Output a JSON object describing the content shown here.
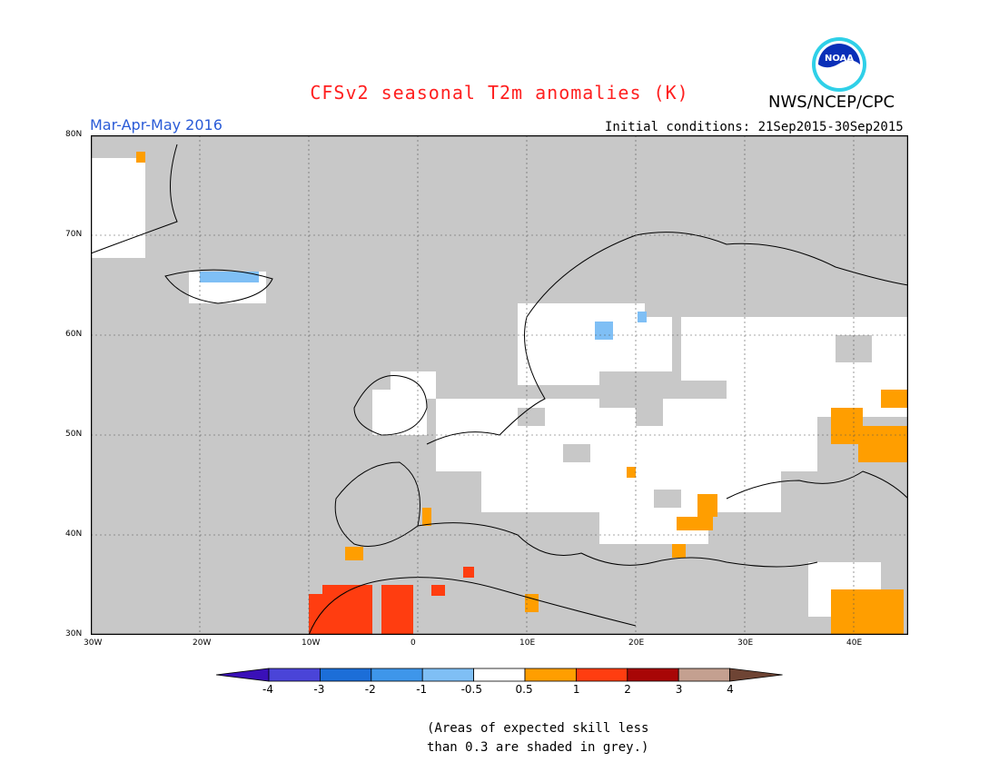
{
  "title": "CFSv2 seasonal T2m anomalies (K)",
  "agency": "NWS/NCEP/CPC",
  "logo": {
    "text": "NOAA",
    "colors": {
      "ring": "#2fd0e8",
      "core": "#0a2fb8"
    }
  },
  "period": "Mar-Apr-May 2016",
  "initial_conditions": "Initial conditions: 21Sep2015-30Sep2015",
  "map": {
    "lon_range": [
      -30,
      45
    ],
    "lat_range": [
      30,
      80
    ],
    "lat_ticks": [
      "80N",
      "70N",
      "60N",
      "50N",
      "40N",
      "30N"
    ],
    "lon_ticks": [
      "30W",
      "20W",
      "10W",
      "0",
      "10E",
      "20E",
      "30E",
      "40E"
    ],
    "colors": {
      "background": "#c8c8c8",
      "no_anomaly": "#ffffff"
    }
  },
  "colorbar": {
    "colors": [
      "#3a10b8",
      "#4a44d8",
      "#1c6ed8",
      "#3e96ea",
      "#7fbff5",
      "#ffffff",
      "#ff9e00",
      "#ff3d10",
      "#a80606",
      "#c4a090",
      "#6e4434"
    ],
    "labels": [
      "-4",
      "-3",
      "-2",
      "-1",
      "-0.5",
      "0.5",
      "1",
      "2",
      "3",
      "4"
    ]
  },
  "note": [
    "(Areas of expected skill less",
    "than 0.3 are shaded in grey.)"
  ]
}
